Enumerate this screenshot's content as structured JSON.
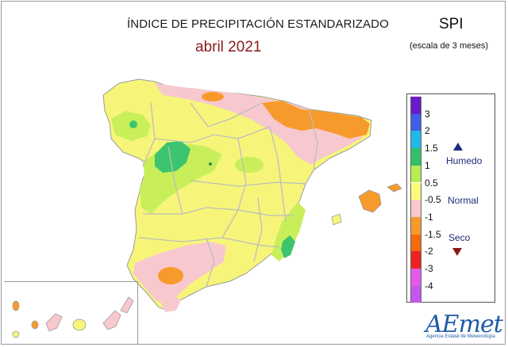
{
  "header": {
    "title": "ÍNDICE DE PRECIPITACIÓN ESTANDARIZADO",
    "subtitle": "abril 2021",
    "index_name": "SPI",
    "scale_note": "(escala de 3 meses)"
  },
  "legend": {
    "classes": [
      {
        "label": "3",
        "color": "#6a1bc9"
      },
      {
        "label": "2",
        "color": "#3f5fe6"
      },
      {
        "label": "1.5",
        "color": "#20b8e8"
      },
      {
        "label": "1",
        "color": "#33c06a"
      },
      {
        "label": "0.5",
        "color": "#b7ec52"
      },
      {
        "label": "-0.5",
        "color": "#fbfb7a"
      },
      {
        "label": "-1",
        "color": "#f8c8cf"
      },
      {
        "label": "-1.5",
        "color": "#f79a2c"
      },
      {
        "label": "-2",
        "color": "#f56a0a"
      },
      {
        "label": "-3",
        "color": "#ee2222"
      },
      {
        "label": "-4",
        "color": "#e45ae8"
      },
      {
        "label": "",
        "color": "#c455f0"
      }
    ],
    "categories": {
      "wet": "Humedo",
      "normal": "Normal",
      "dry": "Seco"
    }
  },
  "logo": {
    "name": "AEmet",
    "caption": "Agencia Estatal de Meteorología"
  },
  "map_colors": {
    "land_normal": "#f6f57a",
    "wet_light": "#c8ef5a",
    "wet": "#3cc46e",
    "dry_light": "#f8c8cf",
    "dry": "#f79a2c",
    "borders": "#bdbdbd"
  }
}
